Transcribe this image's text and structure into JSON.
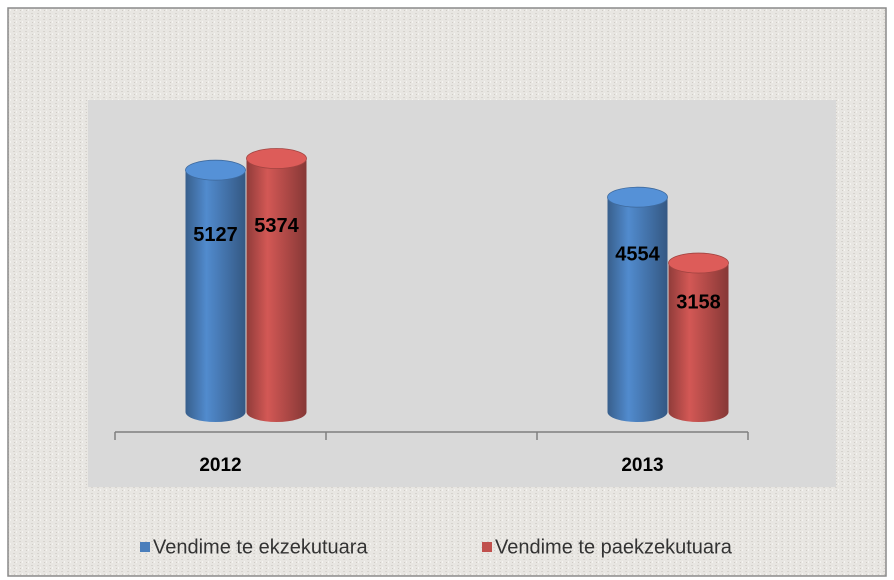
{
  "chart_data": {
    "type": "bar3d",
    "categories": [
      "2012",
      "2013"
    ],
    "series": [
      {
        "name": "Vendime te ekzekutuara",
        "color": "#4a7ebb",
        "values": [
          5127,
          4554
        ]
      },
      {
        "name": "Vendime te paekzekutuara",
        "color": "#c0504d",
        "values": [
          5374,
          3158
        ]
      }
    ],
    "ylim": [
      0,
      6000
    ],
    "legend": "bottom"
  }
}
